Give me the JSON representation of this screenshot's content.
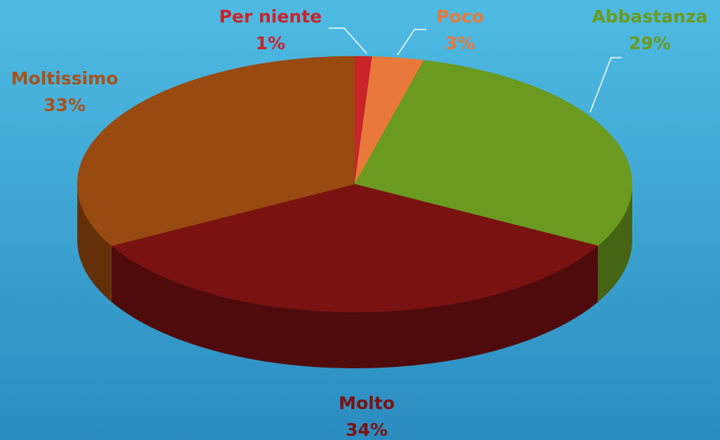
{
  "chart_data": {
    "type": "pie",
    "categories": [
      "Per niente",
      "Poco",
      "Abbastanza",
      "Molto",
      "Moltissimo"
    ],
    "values": [
      1,
      3,
      29,
      34,
      33
    ],
    "value_labels": [
      "1%",
      "3%",
      "29%",
      "34%",
      "33%"
    ],
    "colors": [
      "#c8242a",
      "#e8793a",
      "#6a9a1f",
      "#7a1212",
      "#984a10"
    ],
    "label_colors": [
      "#c8242a",
      "#e8793a",
      "#6a9a1f",
      "#7a1212",
      "#a8521a"
    ]
  }
}
